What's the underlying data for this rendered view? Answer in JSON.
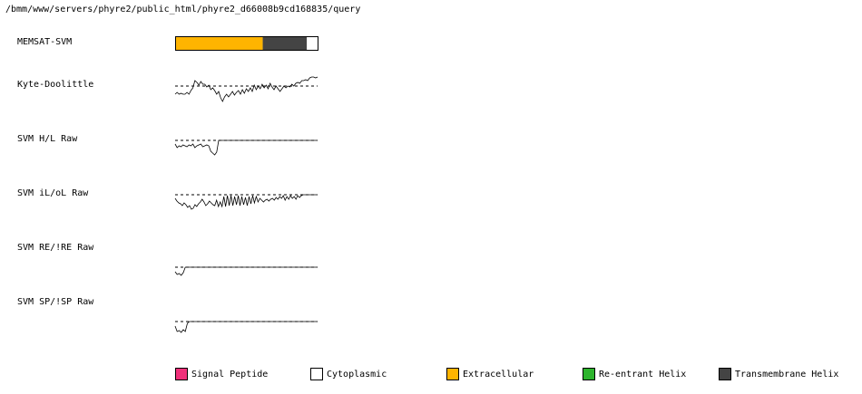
{
  "header": {
    "path": "/bmm/www/servers/phyre2/public_html/phyre2_d66008b9cd168835/query"
  },
  "chart_data": {
    "type": "line",
    "tracks": [
      {
        "label": "MEMSAT-SVM",
        "kind": "topology",
        "segments": [
          {
            "type": "Extracellular",
            "start": 0,
            "end": 0.615
          },
          {
            "type": "Transmembrane Helix",
            "start": 0.615,
            "end": 0.925
          },
          {
            "type": "Cytoplasmic",
            "start": 0.925,
            "end": 1.0
          }
        ]
      },
      {
        "label": "Kyte-Doolittle",
        "kind": "profile",
        "threshold": 0,
        "values": [
          -0.9,
          -0.7,
          -0.9,
          -0.8,
          -0.9,
          -0.9,
          -0.7,
          -0.9,
          -0.5,
          -0.2,
          0.6,
          0.4,
          0.1,
          0.5,
          0.2,
          0.2,
          -0.1,
          0.1,
          -0.4,
          -0.2,
          -0.5,
          -0.9,
          -0.6,
          -1.3,
          -1.7,
          -1.2,
          -0.9,
          -1.2,
          -0.9,
          -0.6,
          -1.0,
          -0.7,
          -0.5,
          -0.9,
          -0.4,
          -0.8,
          -0.3,
          -0.6,
          -0.2,
          -0.6,
          0.1,
          -0.4,
          0.0,
          -0.3,
          0.2,
          -0.2,
          0.1,
          -0.3,
          0.3,
          -0.1,
          -0.4,
          0.0,
          -0.3,
          -0.6,
          -0.3,
          0.0,
          -0.2,
          0.0,
          -0.1,
          0.2,
          0.0,
          0.3,
          0.4,
          0.3,
          0.6,
          0.6,
          0.7,
          0.6,
          0.9,
          1.0,
          1.0,
          0.9,
          1.0
        ]
      },
      {
        "label": "SVM H/L Raw",
        "kind": "profile",
        "threshold": 0,
        "values": [
          -0.4,
          -0.8,
          -0.6,
          -0.7,
          -0.5,
          -0.6,
          -0.7,
          -0.5,
          -0.6,
          -0.4,
          -0.8,
          -0.6,
          -0.5,
          -0.4,
          -0.7,
          -0.6,
          -0.5,
          -0.6,
          -1.2,
          -1.4,
          -1.6,
          -1.3,
          0,
          0,
          0,
          0,
          0,
          0,
          0,
          0,
          0,
          0,
          0,
          0,
          0,
          0,
          0,
          0,
          0,
          0,
          0,
          0,
          0,
          0,
          0,
          0,
          0,
          0,
          0,
          0,
          0,
          0,
          0,
          0,
          0,
          0,
          0,
          0,
          0,
          0,
          0,
          0,
          0,
          0,
          0,
          0,
          0,
          0,
          0,
          0,
          0,
          0,
          0
        ]
      },
      {
        "label": "SVM iL/oL Raw",
        "kind": "profile",
        "threshold": 0,
        "values": [
          -0.4,
          -0.7,
          -0.9,
          -1.0,
          -1.2,
          -0.9,
          -1.1,
          -1.4,
          -1.2,
          -1.6,
          -1.5,
          -1.1,
          -1.3,
          -1.0,
          -0.8,
          -0.5,
          -0.8,
          -1.2,
          -1.0,
          -0.7,
          -0.9,
          -1.1,
          -1.2,
          -0.6,
          -1.3,
          -0.8,
          -1.3,
          -0.2,
          -1.3,
          -0.1,
          -1.2,
          -0.1,
          -1.2,
          -0.2,
          -1.1,
          -0.1,
          -1.2,
          -0.2,
          -1.1,
          -0.3,
          -1.2,
          -0.2,
          -1.0,
          -0.1,
          -0.9,
          -0.2,
          -0.8,
          -0.4,
          -0.6,
          -0.8,
          -0.6,
          -0.5,
          -0.7,
          -0.5,
          -0.4,
          -0.6,
          -0.3,
          -0.5,
          -0.2,
          -0.4,
          -0.1,
          -0.6,
          -0.2,
          -0.5,
          -0.1,
          -0.4,
          -0.2,
          -0.5,
          -0.1,
          -0.3,
          -0.1,
          0,
          0,
          0,
          0,
          0,
          0,
          0,
          0,
          0
        ]
      },
      {
        "label": "SVM RE/!RE Raw",
        "kind": "profile",
        "threshold": 0,
        "values": [
          -0.5,
          -0.8,
          -0.7,
          -0.9,
          -0.6,
          0,
          0,
          0,
          0,
          0,
          0,
          0,
          0,
          0,
          0,
          0,
          0,
          0,
          0,
          0,
          0,
          0,
          0,
          0,
          0,
          0,
          0,
          0,
          0,
          0,
          0,
          0,
          0,
          0,
          0,
          0,
          0,
          0,
          0,
          0,
          0,
          0,
          0,
          0,
          0,
          0,
          0,
          0,
          0,
          0,
          0,
          0,
          0,
          0,
          0,
          0,
          0,
          0,
          0,
          0,
          0,
          0,
          0,
          0,
          0,
          0,
          0,
          0,
          0,
          0,
          0
        ]
      },
      {
        "label": "SVM SP/!SP Raw",
        "kind": "profile",
        "threshold": 0,
        "values": [
          -0.5,
          -1.1,
          -1.0,
          -1.2,
          -0.9,
          -1.1,
          -0.2,
          0,
          0,
          0,
          0,
          0,
          0,
          0,
          0,
          0,
          0,
          0,
          0,
          0,
          0,
          0,
          0,
          0,
          0,
          0,
          0,
          0,
          0,
          0,
          0,
          0,
          0,
          0,
          0,
          0,
          0,
          0,
          0,
          0,
          0,
          0,
          0,
          0,
          0,
          0,
          0,
          0,
          0,
          0,
          0,
          0,
          0,
          0,
          0,
          0,
          0,
          0,
          0,
          0,
          0,
          0,
          0,
          0,
          0,
          0,
          0,
          0,
          0,
          0,
          0
        ]
      }
    ],
    "legend": [
      {
        "label": "Signal Peptide",
        "color": "#f0307a"
      },
      {
        "label": "Cytoplasmic",
        "color": "#ffffff"
      },
      {
        "label": "Extracellular",
        "color": "#ffb400"
      },
      {
        "label": "Re-entrant Helix",
        "color": "#2db42d"
      },
      {
        "label": "Transmembrane Helix",
        "color": "#444444"
      }
    ]
  }
}
